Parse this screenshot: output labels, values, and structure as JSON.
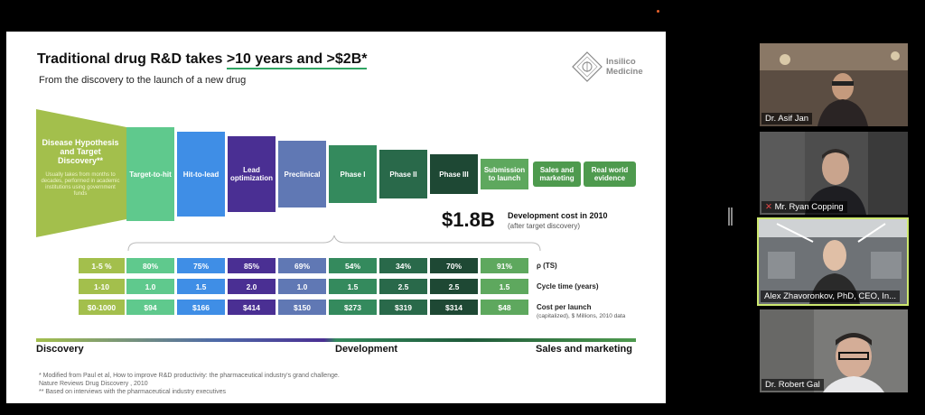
{
  "slide": {
    "title_prefix": "Traditional drug R&D takes ",
    "title_highlight": ">10 years and >$2B*",
    "subtitle": "From the discovery to the launch of a new drug",
    "logo": {
      "line1": "Insilico",
      "line2": "Medicine"
    },
    "funnel": {
      "label": "Disease Hypothesis and Target Discovery**",
      "note": "Usually takes from months to decades, performed in academic institutions using government funds"
    },
    "phases": [
      {
        "label": "Target-to-hit",
        "color": "#5fc98d"
      },
      {
        "label": "Hit-to-lead",
        "color": "#3f8ee6"
      },
      {
        "label": "Lead optimization",
        "color": "#4a2f93"
      },
      {
        "label": "Preclinical",
        "color": "#6078b4"
      },
      {
        "label": "Phase I",
        "color": "#348a5d"
      },
      {
        "label": "Phase II",
        "color": "#29694a"
      },
      {
        "label": "Phase III",
        "color": "#1e4834"
      },
      {
        "label": "Submission to launch",
        "color": "#5ea85e"
      },
      {
        "label": "Sales and marketing",
        "color": "#4e9a4e"
      },
      {
        "label": "Real world evidence",
        "color": "#4e9a4e"
      }
    ],
    "cost_big": "$1.8B",
    "cost_label": "Development cost in 2010",
    "cost_sub": "(after target discovery)",
    "row_first_color": "#a3bf4c",
    "rows": [
      {
        "first": "1-5 %",
        "values": [
          "80%",
          "75%",
          "85%",
          "69%",
          "54%",
          "34%",
          "70%",
          "91%"
        ],
        "label": "ρ (TS)",
        "sub": ""
      },
      {
        "first": "1-10",
        "values": [
          "1.0",
          "1.5",
          "2.0",
          "1.0",
          "1.5",
          "2.5",
          "2.5",
          "1.5"
        ],
        "label": "Cycle time (years)",
        "sub": ""
      },
      {
        "first": "$0-1000",
        "values": [
          "$94",
          "$166",
          "$414",
          "$150",
          "$273",
          "$319",
          "$314",
          "$48"
        ],
        "label": "Cost per launch",
        "sub": "(capitalized), $ Millions, 2010 data"
      }
    ],
    "stages": {
      "discovery": "Discovery",
      "development": "Development",
      "sales": "Sales and marketing"
    },
    "footnote": "* Modified from Paul et al, How to improve R&D productivity: the pharmaceutical industry's grand challenge.\nNature Reviews Drug Discovery , 2010\n** Based on interviews with the pharmaceutical industry executives"
  },
  "participants": [
    {
      "name": "Dr. Asif Jan",
      "muted": false,
      "active": false
    },
    {
      "name": "Mr. Ryan Copping",
      "muted": true,
      "active": false
    },
    {
      "name": "Alex Zhavoronkov, PhD, CEO, In...",
      "muted": false,
      "active": true
    },
    {
      "name": "Dr. Robert Gal",
      "muted": false,
      "active": false
    }
  ]
}
